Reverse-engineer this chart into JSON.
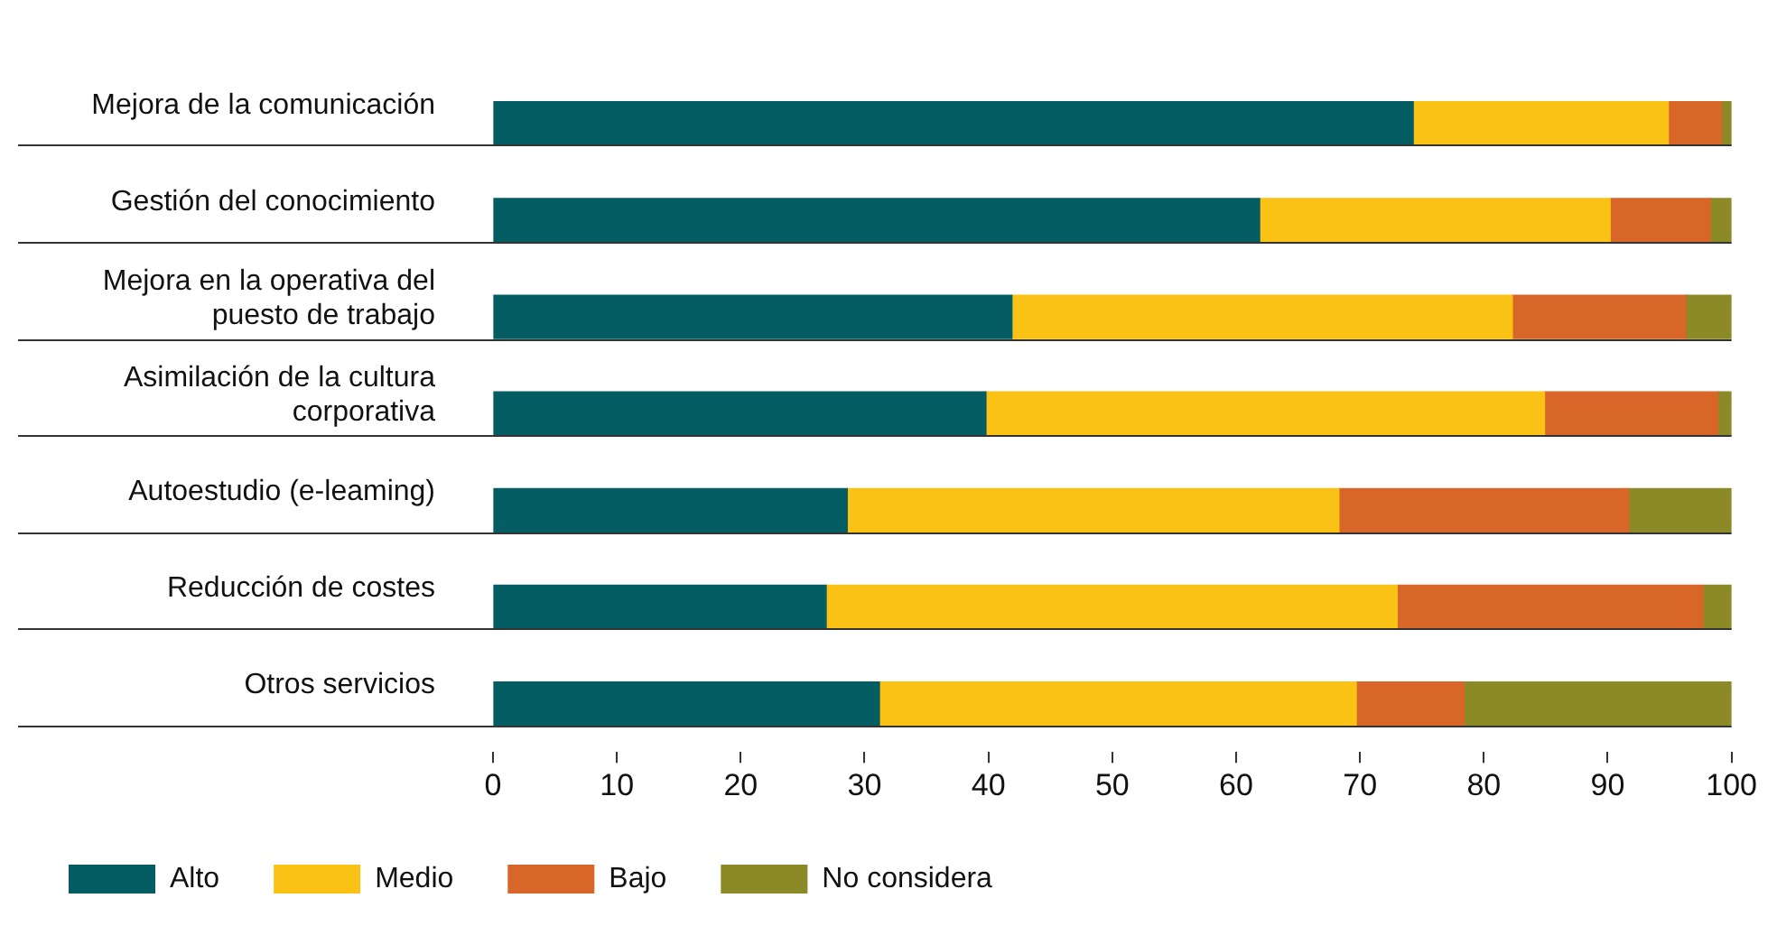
{
  "chart_data": {
    "type": "bar",
    "orientation": "horizontal",
    "stacked": true,
    "categories": [
      "Mejora de la comunicación",
      "Gestión del conocimiento",
      "Mejora en la operativa del puesto de trabajo",
      "Asimilación de la cultura corporativa",
      "Autoestudio (e-leaming)",
      "Reducción de costes",
      "Otros servicios"
    ],
    "series": [
      {
        "name": "Alto",
        "color": "#035d63",
        "values": [
          74.3,
          61.9,
          41.9,
          39.8,
          28.6,
          26.9,
          31.2
        ]
      },
      {
        "name": "Medio",
        "color": "#fbc216",
        "values": [
          20.6,
          28.3,
          40.4,
          45.1,
          39.7,
          46.1,
          38.5
        ]
      },
      {
        "name": "Bajo",
        "color": "#d76628",
        "values": [
          4.3,
          8.1,
          14.0,
          14.0,
          23.4,
          24.7,
          8.7
        ]
      },
      {
        "name": "No considera",
        "color": "#8b8a26",
        "values": [
          0.8,
          1.7,
          3.7,
          1.1,
          8.3,
          2.3,
          21.6
        ]
      }
    ],
    "xlim": [
      0,
      100
    ],
    "xticks": [
      0,
      10,
      20,
      30,
      40,
      50,
      60,
      70,
      80,
      90,
      100
    ],
    "legend": "bottom left"
  }
}
